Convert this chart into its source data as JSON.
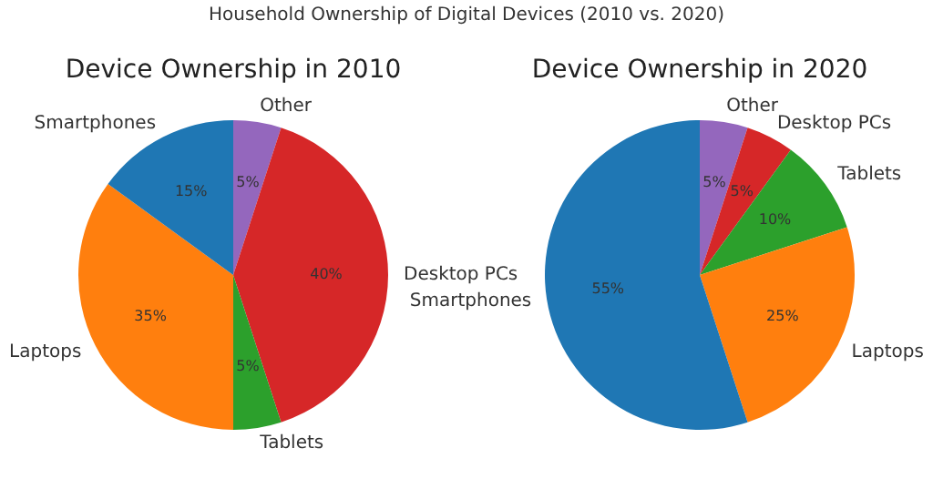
{
  "chart_data": [
    {
      "type": "pie",
      "title": "Device Ownership in 2010",
      "annotations": [
        "Household Ownership of Digital Devices (2010 vs. 2020)"
      ],
      "categories": [
        "Other",
        "Desktop PCs",
        "Tablets",
        "Laptops",
        "Smartphones"
      ],
      "values": [
        5,
        40,
        5,
        35,
        15
      ],
      "value_labels": [
        "5%",
        "40%",
        "5%",
        "35%",
        "15%"
      ],
      "colors": [
        "#9467bd",
        "#d62728",
        "#2ca02c",
        "#ff7f0e",
        "#1f77b4"
      ],
      "legend": false
    },
    {
      "type": "pie",
      "title": "Device Ownership in 2020",
      "categories": [
        "Other",
        "Desktop PCs",
        "Tablets",
        "Laptops",
        "Smartphones"
      ],
      "values": [
        5,
        5,
        10,
        25,
        55
      ],
      "value_labels": [
        "5%",
        "5%",
        "10%",
        "25%",
        "55%"
      ],
      "colors": [
        "#9467bd",
        "#d62728",
        "#2ca02c",
        "#ff7f0e",
        "#1f77b4"
      ],
      "legend": false
    }
  ]
}
